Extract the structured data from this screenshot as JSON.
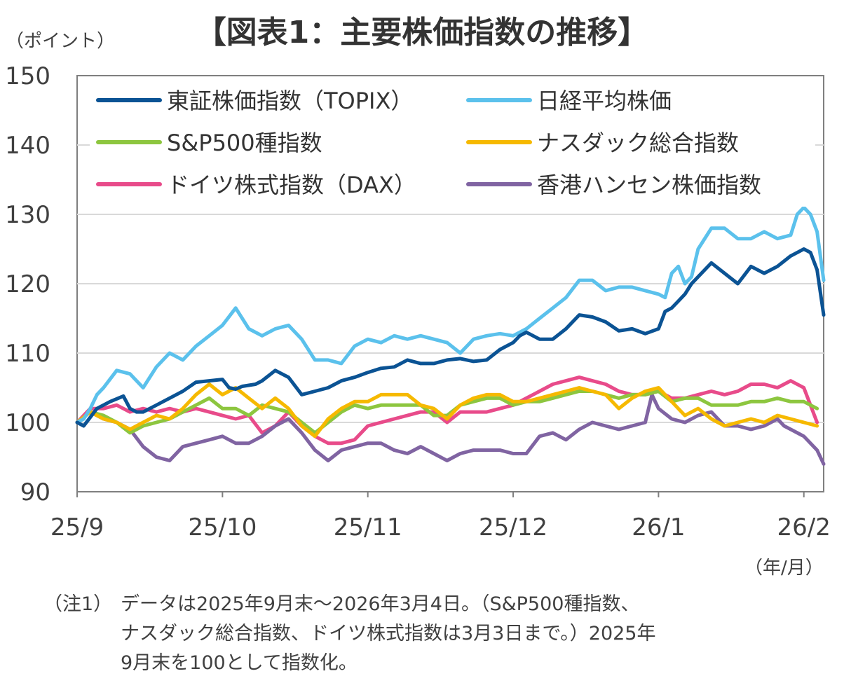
{
  "chart_data": {
    "type": "line",
    "title": "【図表1：主要株価指数の推移】",
    "ylabel": "（ポイント）",
    "xlabel": "（年/月）",
    "ylim": [
      90,
      150
    ],
    "yticks": [
      "90",
      "100",
      "110",
      "120",
      "130",
      "140",
      "150"
    ],
    "x_tick_labels": [
      "25/9",
      "25/10",
      "25/11",
      "25/12",
      "26/1",
      "26/2"
    ],
    "x_tick_positions": [
      0,
      22,
      44,
      66,
      88,
      110
    ],
    "x_range": [
      0,
      113
    ],
    "legend_position": "top",
    "series": [
      {
        "name": "東証株価指数（TOPIX）",
        "color": "#0b5394",
        "x": [
          0,
          1,
          3,
          5,
          7,
          8,
          9,
          10,
          12,
          14,
          16,
          18,
          20,
          22,
          23,
          24,
          25,
          27,
          28,
          30,
          32,
          34,
          36,
          38,
          40,
          42,
          44,
          46,
          48,
          50,
          52,
          54,
          56,
          58,
          60,
          62,
          64,
          66,
          67,
          68,
          70,
          72,
          74,
          76,
          78,
          80,
          82,
          84,
          86,
          88,
          89,
          90,
          91,
          92,
          93,
          94,
          96,
          98,
          100,
          102,
          104,
          106,
          108,
          110,
          111,
          112,
          113
        ],
        "values": [
          100,
          99.5,
          102,
          103,
          103.8,
          102,
          101.5,
          101.5,
          102.5,
          103.5,
          104.5,
          105.8,
          106,
          106.2,
          105,
          104.8,
          105.2,
          105.5,
          106,
          107.5,
          106.5,
          104,
          104.5,
          105,
          106,
          106.5,
          107.2,
          107.8,
          108,
          109,
          108.5,
          108.5,
          109,
          109.2,
          108.8,
          109,
          110.5,
          111.5,
          112.5,
          113,
          112,
          112,
          113.5,
          115.5,
          115.2,
          114.5,
          113.2,
          113.5,
          112.8,
          113.5,
          116,
          116.5,
          117.5,
          118.5,
          120,
          121,
          123,
          121.5,
          120,
          122.5,
          121.5,
          122.5,
          124,
          125,
          124.5,
          122,
          115.5
        ]
      },
      {
        "name": "日経平均株価",
        "color": "#5bc1ec",
        "x": [
          0,
          1,
          2,
          3,
          4,
          6,
          8,
          10,
          12,
          14,
          16,
          18,
          20,
          22,
          24,
          26,
          28,
          30,
          32,
          34,
          36,
          38,
          40,
          42,
          44,
          46,
          48,
          50,
          52,
          54,
          56,
          58,
          60,
          62,
          64,
          66,
          68,
          70,
          72,
          74,
          76,
          78,
          80,
          82,
          84,
          86,
          88,
          89,
          90,
          91,
          92,
          93,
          94,
          96,
          98,
          100,
          102,
          104,
          106,
          108,
          109,
          110,
          111,
          112,
          113
        ],
        "values": [
          100,
          100.5,
          102,
          104,
          105,
          107.5,
          107,
          105,
          108,
          110,
          109,
          111,
          112.5,
          114,
          116.5,
          113.5,
          112.5,
          113.5,
          114,
          112,
          109,
          109,
          108.5,
          111,
          112,
          111.5,
          112.5,
          112,
          112.5,
          112,
          111.5,
          110,
          112,
          112.5,
          112.8,
          112.5,
          113.5,
          115,
          116.5,
          118,
          120.5,
          120.5,
          119,
          119.5,
          119.5,
          119,
          118.5,
          118,
          121.5,
          122.5,
          120,
          121,
          125,
          128,
          128,
          126.5,
          126.5,
          127.5,
          126.5,
          127,
          130,
          131,
          130,
          127.5,
          120.5
        ]
      },
      {
        "name": "S&P500種指数",
        "color": "#8dc63f",
        "x": [
          0,
          2,
          4,
          6,
          8,
          10,
          12,
          14,
          16,
          18,
          20,
          22,
          24,
          26,
          28,
          30,
          32,
          34,
          36,
          38,
          40,
          42,
          44,
          46,
          48,
          50,
          52,
          54,
          56,
          58,
          60,
          62,
          64,
          66,
          68,
          70,
          72,
          74,
          76,
          78,
          80,
          82,
          84,
          86,
          88,
          90,
          92,
          94,
          96,
          98,
          100,
          102,
          104,
          106,
          108,
          110,
          112
        ],
        "values": [
          100,
          101.5,
          101,
          100,
          98.5,
          99.5,
          100,
          100.5,
          101.5,
          102.5,
          103.5,
          102,
          102,
          101,
          102.5,
          102,
          101.5,
          100,
          98.5,
          100,
          101.5,
          102.5,
          102,
          102.5,
          102.5,
          102.5,
          102.5,
          101,
          101,
          102.5,
          103,
          103.5,
          103.5,
          102.5,
          103,
          103,
          103.5,
          104,
          104.5,
          104.5,
          104,
          103.5,
          104,
          104,
          104.5,
          103,
          103.5,
          103.5,
          102.5,
          102.5,
          102.5,
          103,
          103,
          103.5,
          103,
          103,
          102
        ]
      },
      {
        "name": "ナスダック総合指数",
        "color": "#f6b900",
        "x": [
          0,
          2,
          4,
          6,
          8,
          10,
          12,
          14,
          16,
          18,
          20,
          22,
          24,
          26,
          28,
          30,
          32,
          34,
          36,
          38,
          40,
          42,
          44,
          46,
          48,
          50,
          52,
          54,
          56,
          58,
          60,
          62,
          64,
          66,
          68,
          70,
          72,
          74,
          76,
          78,
          80,
          82,
          84,
          86,
          88,
          90,
          92,
          94,
          96,
          98,
          100,
          102,
          104,
          106,
          108,
          110,
          112
        ],
        "values": [
          100,
          101.5,
          100.5,
          100,
          99,
          100,
          101,
          100.5,
          102,
          104,
          105.5,
          104,
          105,
          103.5,
          102,
          103.5,
          102,
          99.5,
          98,
          100.5,
          102,
          103,
          103,
          104,
          104,
          104,
          102.5,
          102,
          100.5,
          102.5,
          103.5,
          104,
          104,
          103,
          103,
          103.5,
          104,
          104.5,
          105,
          104.5,
          104,
          102,
          103.5,
          104.5,
          105,
          103,
          101,
          102,
          100.5,
          99.5,
          100,
          100.5,
          100,
          101,
          100.5,
          100,
          99.5
        ]
      },
      {
        "name": "ドイツ株式指数（DAX）",
        "color": "#e84b8a",
        "x": [
          0,
          2,
          4,
          6,
          8,
          10,
          12,
          14,
          16,
          18,
          20,
          22,
          24,
          26,
          28,
          30,
          32,
          34,
          36,
          38,
          40,
          42,
          44,
          46,
          48,
          50,
          52,
          54,
          56,
          58,
          60,
          62,
          64,
          66,
          68,
          70,
          72,
          74,
          76,
          78,
          80,
          82,
          84,
          86,
          88,
          90,
          92,
          94,
          96,
          98,
          100,
          102,
          104,
          106,
          108,
          110,
          112
        ],
        "values": [
          100,
          102,
          102,
          102.5,
          101.5,
          102,
          101.5,
          102,
          101.5,
          102,
          101.5,
          101,
          100.5,
          101,
          98.5,
          99.5,
          101.5,
          99.5,
          98,
          97,
          97,
          97.5,
          99.5,
          100,
          100.5,
          101,
          101.5,
          101.5,
          100,
          101.5,
          101.5,
          101.5,
          102,
          102.5,
          103.5,
          104.5,
          105.5,
          106,
          106.5,
          106,
          105.5,
          104.5,
          104,
          104,
          104.5,
          103.5,
          103.5,
          104,
          104.5,
          104,
          104.5,
          105.5,
          105.5,
          105,
          106,
          105,
          100
        ]
      },
      {
        "name": "香港ハンセン株価指数",
        "color": "#8064a2",
        "x": [
          0,
          2,
          4,
          6,
          8,
          10,
          12,
          14,
          16,
          18,
          20,
          22,
          24,
          26,
          28,
          30,
          32,
          34,
          36,
          38,
          40,
          42,
          44,
          46,
          48,
          50,
          52,
          54,
          56,
          58,
          60,
          62,
          64,
          66,
          68,
          70,
          72,
          74,
          76,
          78,
          80,
          82,
          84,
          86,
          87,
          88,
          90,
          92,
          94,
          96,
          98,
          100,
          102,
          104,
          106,
          107,
          108,
          110,
          112,
          113
        ],
        "values": [
          100,
          101.5,
          100.5,
          100,
          99,
          96.5,
          95,
          94.5,
          96.5,
          97,
          97.5,
          98,
          97,
          97,
          98,
          99.5,
          100.5,
          98.5,
          96,
          94.5,
          96,
          96.5,
          97,
          97,
          96,
          95.5,
          96.5,
          95.5,
          94.5,
          95.5,
          96,
          96,
          96,
          95.5,
          95.5,
          98,
          98.5,
          97.5,
          99,
          100,
          99.5,
          99,
          99.5,
          100,
          104,
          102,
          100.5,
          100,
          101,
          101.5,
          99.5,
          99.5,
          99,
          99.5,
          100.5,
          99.5,
          99,
          98,
          96,
          94
        ]
      }
    ],
    "notes": {
      "label": "（注1）",
      "text": "データは2025年9月末～2026年3月4日。（S&P500種指数、\nナスダック総合指数、ドイツ株式指数は3月3日まで。）2025年\n9月末を100として指数化。"
    }
  }
}
